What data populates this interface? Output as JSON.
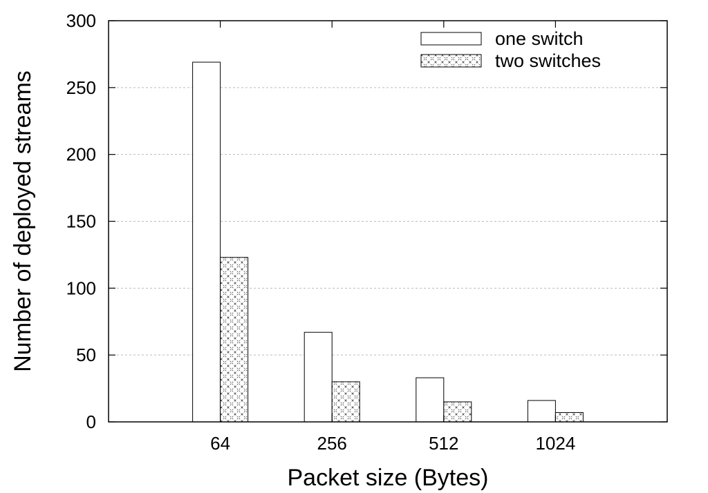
{
  "chart_data": {
    "type": "bar",
    "categories": [
      "64",
      "256",
      "512",
      "1024"
    ],
    "series": [
      {
        "name": "one switch",
        "values": [
          269,
          67,
          33,
          16
        ]
      },
      {
        "name": "two switches",
        "values": [
          123,
          30,
          15,
          7
        ]
      }
    ],
    "xlabel": "Packet size (Bytes)",
    "ylabel": "Number of deployed streams",
    "ylim": [
      0,
      300
    ],
    "yticks": [
      0,
      50,
      100,
      150,
      200,
      250,
      300
    ],
    "grid": true,
    "legend_position": "top-right",
    "colors": {
      "bar_fill": "#ffffff",
      "bar_stroke": "#000000",
      "pattern": "#444444",
      "grid": "#bbbbbb"
    }
  }
}
